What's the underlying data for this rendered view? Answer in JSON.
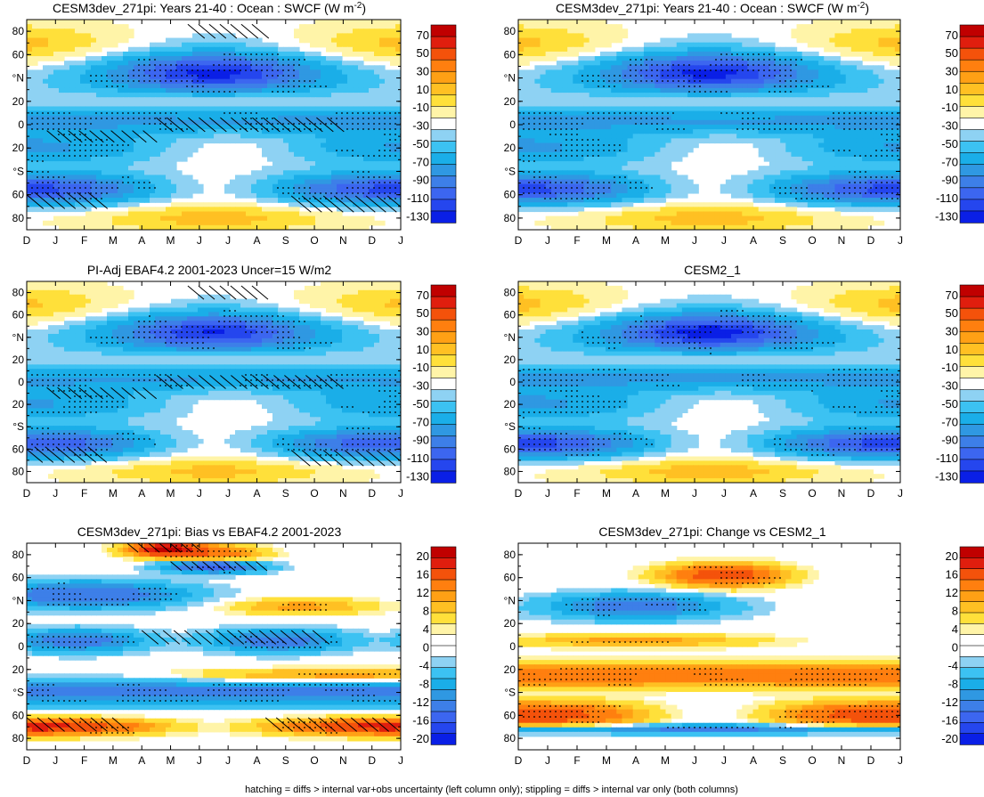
{
  "figure": {
    "footnote": "hatching = diffs > internal var+obs uncertainty (left column only); stippling = diffs > internal var only (both columns)"
  },
  "palettes": {
    "mean": [
      "#0a1fe6",
      "#2546ee",
      "#3c66f0",
      "#3d7fe8",
      "#2f98e2",
      "#1aaee8",
      "#3cc2f2",
      "#8ed2f3",
      "#ffffff",
      "#fff4a8",
      "#ffe03a",
      "#ffc023",
      "#ffa015",
      "#ff7f0f",
      "#f4520b",
      "#e01e0e",
      "#c00000"
    ],
    "diff": [
      "#0a1fe6",
      "#2546ee",
      "#3c66f0",
      "#3d7fe8",
      "#2f98e2",
      "#1aaee8",
      "#3cc2f2",
      "#8ed2f3",
      "#ffffff",
      "#ffffff",
      "#fff4a8",
      "#ffe03a",
      "#ffc023",
      "#ffa015",
      "#ff7f0f",
      "#f4520b",
      "#e01e0e",
      "#c00000"
    ]
  },
  "chart_data": [
    {
      "id": "p1",
      "type": "heatmap",
      "title": "CESM3dev_271pi: Years 21-40 : Ocean : SWCF (W m",
      "title_sup": "-2",
      "title_close": ")",
      "x_ticks": [
        "D",
        "J",
        "F",
        "M",
        "A",
        "M",
        "J",
        "J",
        "A",
        "S",
        "O",
        "N",
        "D",
        "J"
      ],
      "y_ticks": [
        "80",
        "60",
        "°N",
        "20",
        "0",
        "20",
        "°S",
        "60",
        "80"
      ],
      "ylim": [
        -90,
        90
      ],
      "colorbar": {
        "palette": "mean",
        "labels": [
          "70",
          "50",
          "30",
          "10",
          "-10",
          "-30",
          "-50",
          "-70",
          "-90",
          "-110",
          "-130"
        ]
      },
      "field": "mean",
      "amp": 1.0,
      "hatch": true,
      "stipple": true
    },
    {
      "id": "p2",
      "type": "heatmap",
      "title": "CESM3dev_271pi: Years 21-40 : Ocean : SWCF (W m",
      "title_sup": "-2",
      "title_close": ")",
      "x_ticks": [
        "D",
        "J",
        "F",
        "M",
        "A",
        "M",
        "J",
        "J",
        "A",
        "S",
        "O",
        "N",
        "D",
        "J"
      ],
      "y_ticks": [
        "80",
        "60",
        "°N",
        "20",
        "0",
        "20",
        "°S",
        "60",
        "80"
      ],
      "ylim": [
        -90,
        90
      ],
      "colorbar": {
        "palette": "mean",
        "labels": [
          "70",
          "50",
          "30",
          "10",
          "-10",
          "-30",
          "-50",
          "-70",
          "-90",
          "-110",
          "-130"
        ]
      },
      "field": "mean",
      "amp": 1.0,
      "hatch": false,
      "stipple": true
    },
    {
      "id": "p3",
      "type": "heatmap",
      "title": "PI-Adj EBAF4.2 2001-2023 Uncer=15 W/m2",
      "x_ticks": [
        "D",
        "J",
        "F",
        "M",
        "A",
        "M",
        "J",
        "J",
        "A",
        "S",
        "O",
        "N",
        "D",
        "J"
      ],
      "y_ticks": [
        "80",
        "60",
        "°N",
        "20",
        "0",
        "20",
        "°S",
        "60",
        "80"
      ],
      "ylim": [
        -90,
        90
      ],
      "colorbar": {
        "palette": "mean",
        "labels": [
          "70",
          "50",
          "30",
          "10",
          "-10",
          "-30",
          "-50",
          "-70",
          "-90",
          "-110",
          "-130"
        ]
      },
      "field": "mean",
      "amp": 0.95,
      "hatch": true,
      "stipple": true
    },
    {
      "id": "p4",
      "type": "heatmap",
      "title": "CESM2_1",
      "x_ticks": [
        "D",
        "J",
        "F",
        "M",
        "A",
        "M",
        "J",
        "J",
        "A",
        "S",
        "O",
        "N",
        "D",
        "J"
      ],
      "y_ticks": [
        "80",
        "60",
        "°N",
        "20",
        "0",
        "20",
        "°S",
        "60",
        "80"
      ],
      "ylim": [
        -90,
        90
      ],
      "colorbar": {
        "palette": "mean",
        "labels": [
          "70",
          "50",
          "30",
          "10",
          "-10",
          "-30",
          "-50",
          "-70",
          "-90",
          "-110",
          "-130"
        ]
      },
      "field": "mean",
      "amp": 1.02,
      "hatch": false,
      "stipple": true
    },
    {
      "id": "p5",
      "type": "heatmap",
      "title": "CESM3dev_271pi: Bias vs EBAF4.2 2001-2023",
      "x_ticks": [
        "D",
        "J",
        "F",
        "M",
        "A",
        "M",
        "J",
        "J",
        "A",
        "S",
        "O",
        "N",
        "D",
        "J"
      ],
      "y_ticks": [
        "80",
        "60",
        "°N",
        "20",
        "0",
        "20",
        "°S",
        "60",
        "80"
      ],
      "ylim": [
        -90,
        90
      ],
      "colorbar": {
        "palette": "diff",
        "labels": [
          "20",
          "16",
          "12",
          "8",
          "4",
          "0",
          "-4",
          "-8",
          "-12",
          "-16",
          "-20"
        ]
      },
      "field": "bias",
      "amp": 1.0,
      "hatch": true,
      "stipple": true
    },
    {
      "id": "p6",
      "type": "heatmap",
      "title": "CESM3dev_271pi: Change vs CESM2_1",
      "x_ticks": [
        "D",
        "J",
        "F",
        "M",
        "A",
        "M",
        "J",
        "J",
        "A",
        "S",
        "O",
        "N",
        "D",
        "J"
      ],
      "y_ticks": [
        "80",
        "60",
        "°N",
        "20",
        "0",
        "20",
        "°S",
        "60",
        "80"
      ],
      "ylim": [
        -90,
        90
      ],
      "colorbar": {
        "palette": "diff",
        "labels": [
          "20",
          "16",
          "12",
          "8",
          "4",
          "0",
          "-4",
          "-8",
          "-12",
          "-16",
          "-20"
        ]
      },
      "field": "change",
      "amp": 1.0,
      "hatch": false,
      "stipple": true
    }
  ]
}
